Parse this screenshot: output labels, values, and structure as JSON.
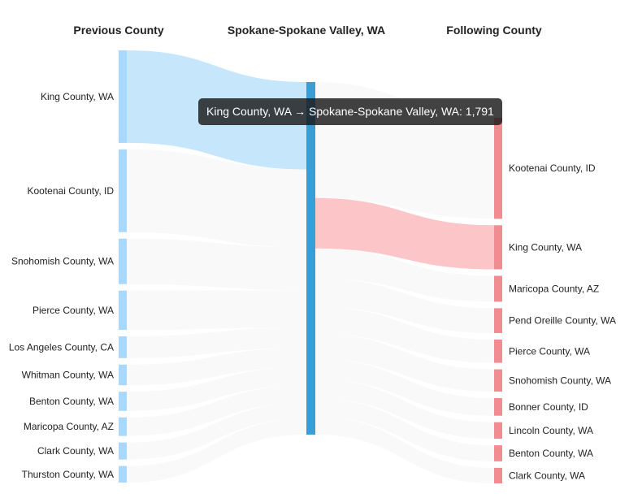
{
  "colors": {
    "source_node": "#a8d8fb",
    "center_node": "#3a9ed6",
    "target_node": "#f08c92",
    "highlight_in_link": "#c6e6fc",
    "highlight_out_link": "#fcc6c9",
    "faint_link": "#f4f4f4",
    "tooltip_bg": "#1e1e1e"
  },
  "tooltip": {
    "text": "King County, WA → Spokane-Spokane Valley, WA: 1,791"
  },
  "chart_data": {
    "type": "sankey",
    "column_headers": [
      "Previous County",
      "Spokane-Spokane Valley, WA",
      "Following County"
    ],
    "center": "Spokane-Spokane Valley, WA",
    "previous_counties": [
      {
        "name": "King County, WA",
        "value": 1791,
        "highlighted": true
      },
      {
        "name": "Kootenai County, ID",
        "value": 1600
      },
      {
        "name": "Snohomish County, WA",
        "value": 880
      },
      {
        "name": "Pierce County, WA",
        "value": 760
      },
      {
        "name": "Los Angeles County, CA",
        "value": 420
      },
      {
        "name": "Whitman County, WA",
        "value": 400
      },
      {
        "name": "Benton County, WA",
        "value": 370
      },
      {
        "name": "Maricopa County, AZ",
        "value": 360
      },
      {
        "name": "Clark County, WA",
        "value": 330
      },
      {
        "name": "Thurston County, WA",
        "value": 320
      }
    ],
    "following_counties": [
      {
        "name": "Kootenai County, ID",
        "value": 1950
      },
      {
        "name": "King County, WA",
        "value": 850,
        "highlighted": true
      },
      {
        "name": "Maricopa County, AZ",
        "value": 500
      },
      {
        "name": "Pend Oreille County, WA",
        "value": 480
      },
      {
        "name": "Pierce County, WA",
        "value": 450
      },
      {
        "name": "Snohomish County, WA",
        "value": 430
      },
      {
        "name": "Bonner County, ID",
        "value": 340
      },
      {
        "name": "Lincoln County, WA",
        "value": 320
      },
      {
        "name": "Benton County, WA",
        "value": 310
      },
      {
        "name": "Clark County, WA",
        "value": 300
      }
    ]
  }
}
